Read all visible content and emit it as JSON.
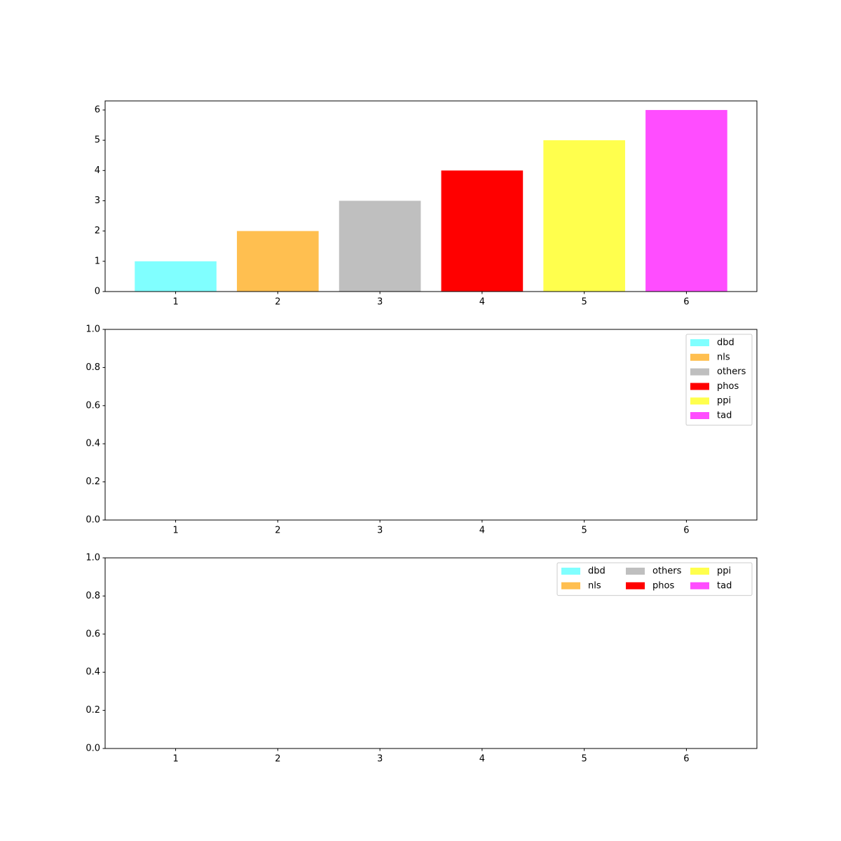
{
  "chart_data": [
    {
      "type": "bar",
      "x": [
        1,
        2,
        3,
        4,
        5,
        6
      ],
      "values": [
        1,
        2,
        3,
        4,
        5,
        6
      ],
      "colors": [
        "#80ffff",
        "#ffbf50",
        "#bfbfbf",
        "#ff0000",
        "#ffff4d",
        "#ff4dff"
      ],
      "xlim": [
        0.31,
        6.69
      ],
      "xticks": [
        1,
        2,
        3,
        4,
        5,
        6
      ],
      "ylim": [
        0,
        6.3
      ],
      "yticks": [
        0,
        1,
        2,
        3,
        4,
        5,
        6
      ]
    },
    {
      "type": "bar",
      "series": [
        {
          "name": "dbd",
          "color": "#80ffff"
        },
        {
          "name": "nls",
          "color": "#ffbf50"
        },
        {
          "name": "others",
          "color": "#bfbfbf"
        },
        {
          "name": "phos",
          "color": "#ff0000"
        },
        {
          "name": "ppi",
          "color": "#ffff4d"
        },
        {
          "name": "tad",
          "color": "#ff4dff"
        }
      ],
      "legend": "upper right",
      "legend_columns": 1,
      "xlim": [
        0.31,
        6.69
      ],
      "xticks": [
        1,
        2,
        3,
        4,
        5,
        6
      ],
      "ylim": [
        0,
        1
      ],
      "yticks": [
        {
          "value": 0,
          "label": "0.0"
        },
        {
          "value": 0.2,
          "label": "0.2"
        },
        {
          "value": 0.4,
          "label": "0.4"
        },
        {
          "value": 0.6,
          "label": "0.6"
        },
        {
          "value": 0.8,
          "label": "0.8"
        },
        {
          "value": 1,
          "label": "1.0"
        }
      ]
    },
    {
      "type": "bar",
      "series": [
        {
          "name": "dbd",
          "color": "#80ffff"
        },
        {
          "name": "nls",
          "color": "#ffbf50"
        },
        {
          "name": "others",
          "color": "#bfbfbf"
        },
        {
          "name": "phos",
          "color": "#ff0000"
        },
        {
          "name": "ppi",
          "color": "#ffff4d"
        },
        {
          "name": "tad",
          "color": "#ff4dff"
        }
      ],
      "legend": "upper right",
      "legend_columns": 3,
      "xlim": [
        0.31,
        6.69
      ],
      "xticks": [
        1,
        2,
        3,
        4,
        5,
        6
      ],
      "ylim": [
        0,
        1
      ],
      "yticks": [
        {
          "value": 0,
          "label": "0.0"
        },
        {
          "value": 0.2,
          "label": "0.2"
        },
        {
          "value": 0.4,
          "label": "0.4"
        },
        {
          "value": 0.6,
          "label": "0.6"
        },
        {
          "value": 0.8,
          "label": "0.8"
        },
        {
          "value": 1,
          "label": "1.0"
        }
      ]
    }
  ]
}
